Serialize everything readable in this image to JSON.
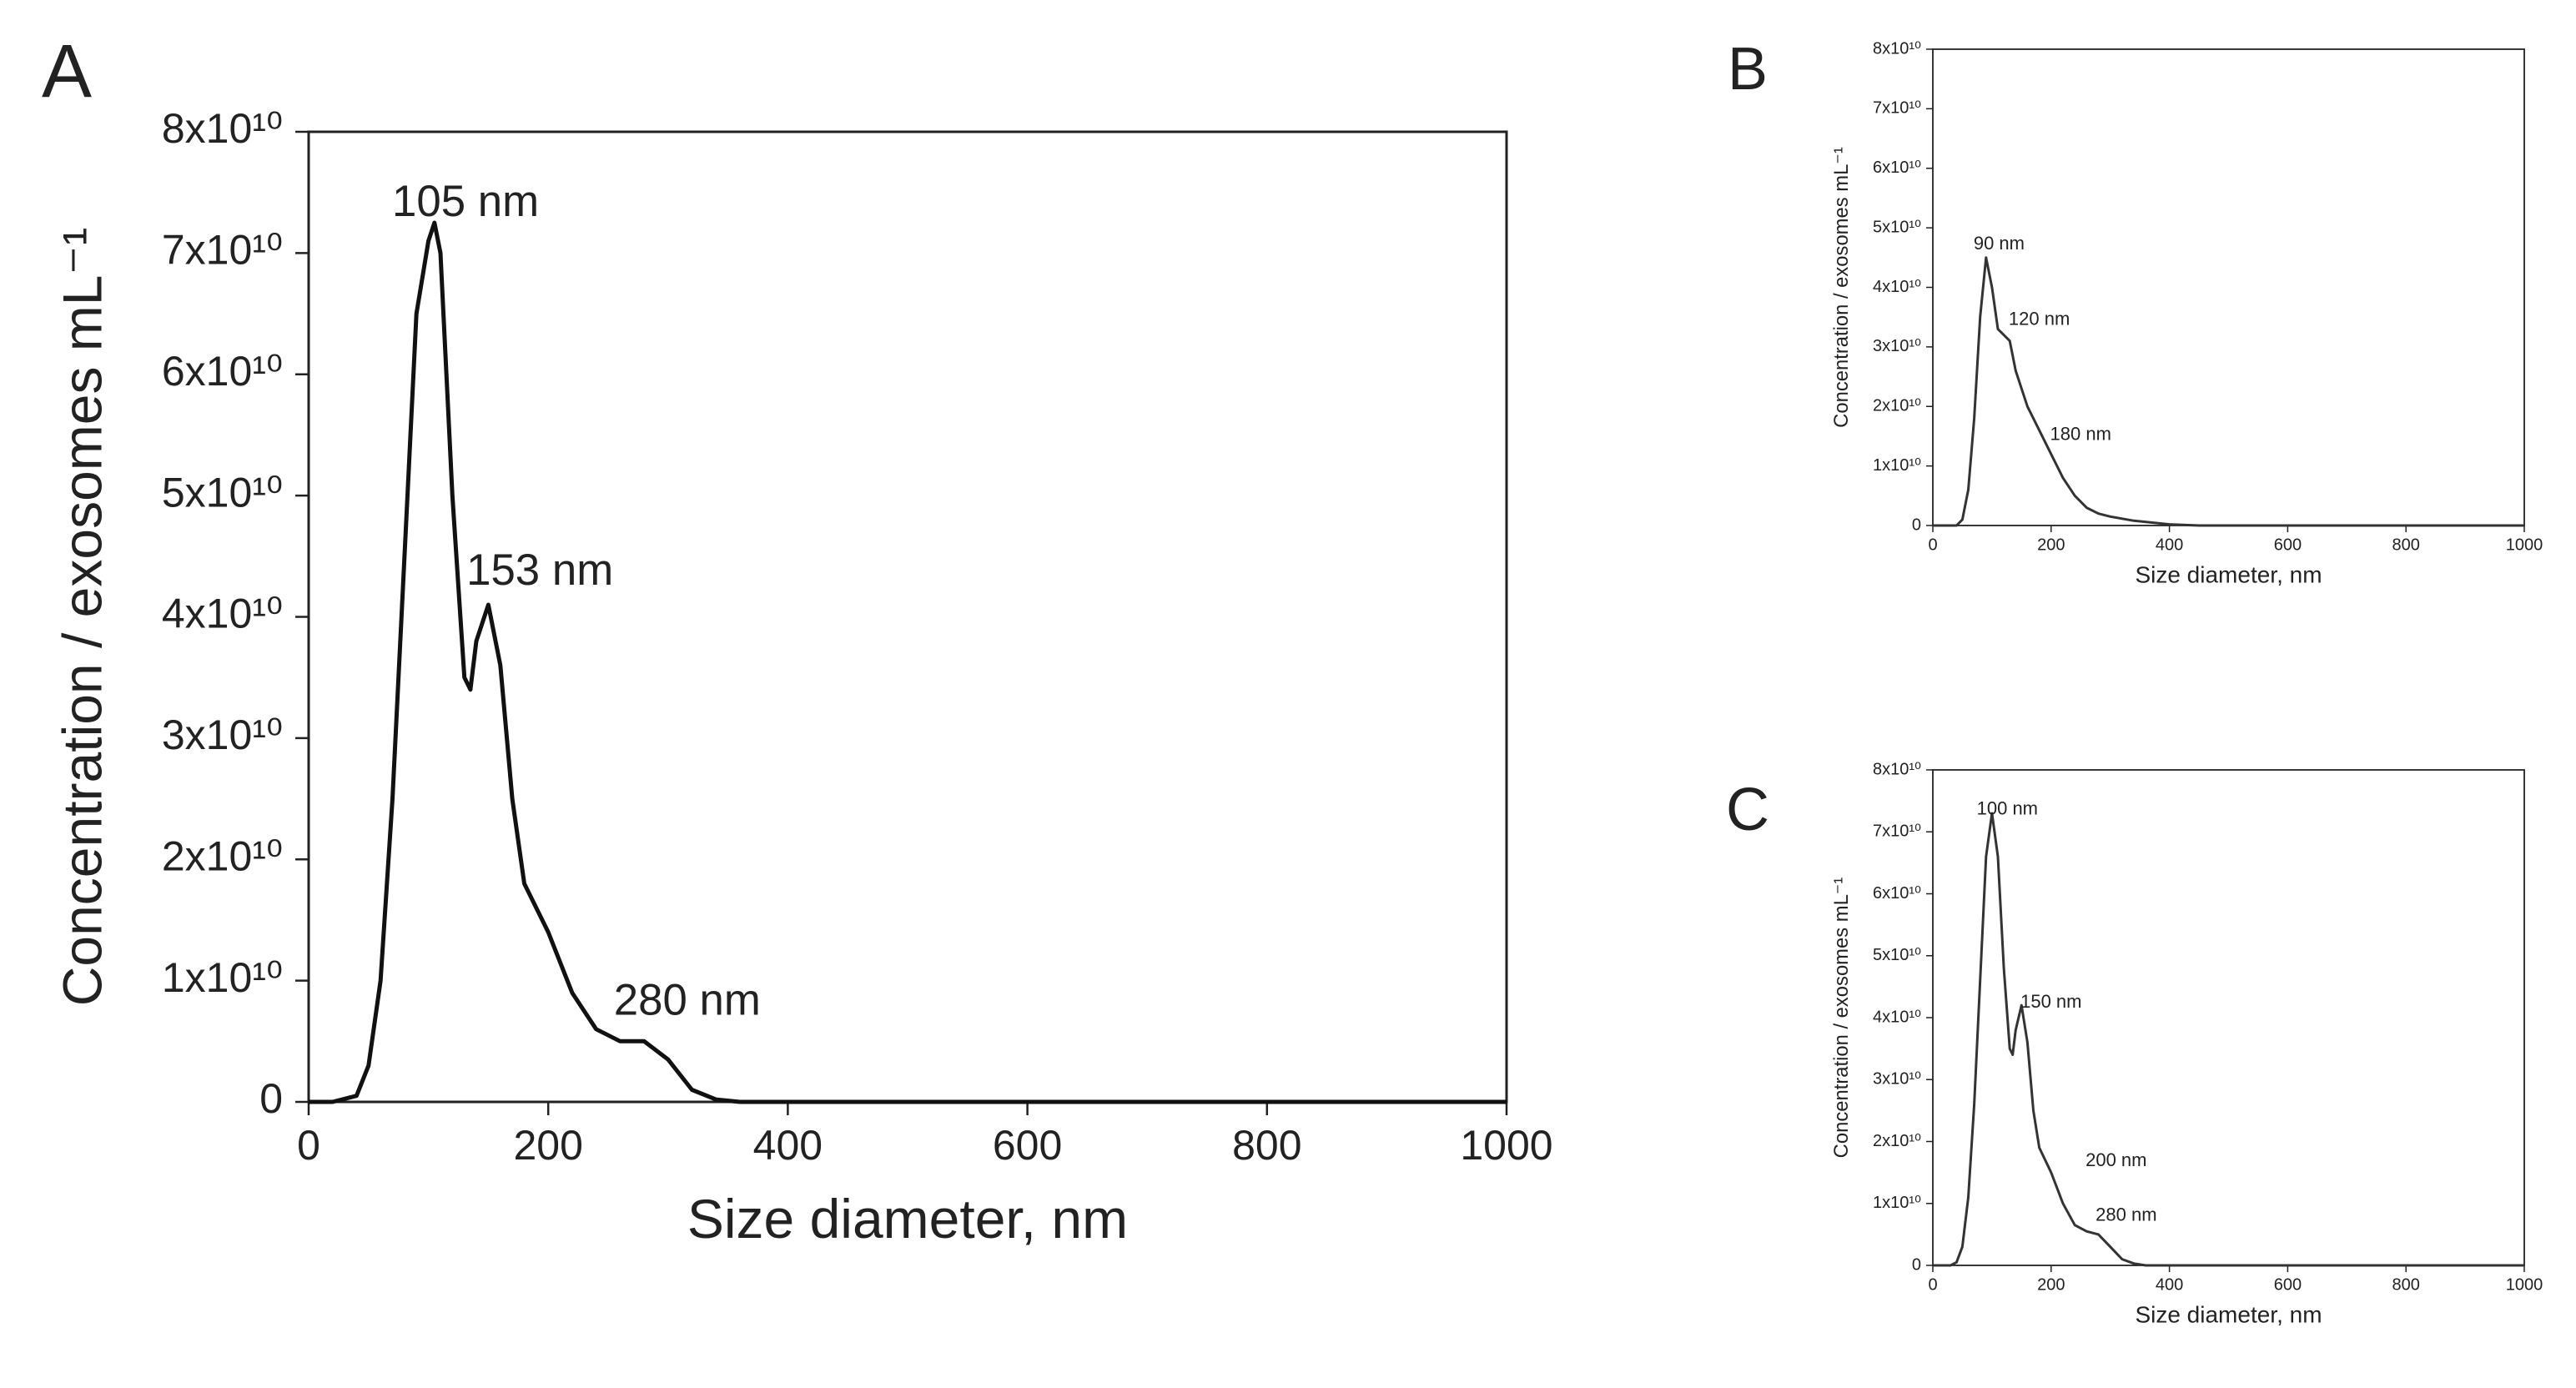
{
  "chart_data": [
    {
      "type": "line",
      "panel_label": "A",
      "xlabel": "Size diameter, nm",
      "ylabel": "Concentration / exosomes mL⁻¹",
      "x": [
        0,
        20,
        40,
        50,
        60,
        70,
        80,
        90,
        100,
        105,
        110,
        120,
        130,
        135,
        140,
        150,
        160,
        170,
        180,
        200,
        220,
        240,
        260,
        280,
        300,
        320,
        340,
        360,
        380,
        400,
        1000
      ],
      "series": [
        {
          "color": "#111111",
          "values": [
            0,
            0,
            500000000.0,
            3000000000.0,
            10000000000.0,
            25000000000.0,
            45000000000.0,
            65000000000.0,
            71000000000.0,
            72500000000.0,
            70000000000.0,
            50000000000.0,
            35000000000.0,
            34000000000.0,
            38000000000.0,
            41000000000.0,
            36000000000.0,
            25000000000.0,
            18000000000.0,
            14000000000.0,
            9000000000.0,
            6000000000.0,
            5000000000.0,
            5000000000.0,
            3500000000.0,
            1000000000.0,
            200000000.0,
            0,
            0,
            0,
            0
          ]
        }
      ],
      "annotations": [
        "105 nm",
        "153 nm",
        "280 nm"
      ],
      "xlim": [
        0,
        1000
      ],
      "xticks": [
        0,
        200,
        400,
        600,
        800,
        1000
      ],
      "ylim": [
        0,
        80000000000.0
      ],
      "yticks": [
        0,
        {
          "value": 10000000000.0,
          "label": "1x10¹⁰"
        },
        {
          "value": 20000000000.0,
          "label": "2x10¹⁰"
        },
        {
          "value": 30000000000.0,
          "label": "3x10¹⁰"
        },
        {
          "value": 40000000000.0,
          "label": "4x10¹⁰"
        },
        {
          "value": 50000000000.0,
          "label": "5x10¹⁰"
        },
        {
          "value": 60000000000.0,
          "label": "6x10¹⁰"
        },
        {
          "value": 70000000000.0,
          "label": "7x10¹⁰"
        },
        {
          "value": 80000000000.0,
          "label": "8x10¹⁰"
        }
      ]
    },
    {
      "type": "line",
      "panel_label": "B",
      "xlabel": "Size diameter, nm",
      "ylabel": "Concentration / exosomes mL⁻¹",
      "x": [
        0,
        40,
        50,
        60,
        70,
        80,
        90,
        100,
        110,
        120,
        130,
        140,
        160,
        180,
        200,
        220,
        240,
        260,
        280,
        300,
        340,
        400,
        450,
        1000
      ],
      "series": [
        {
          "color": "#333333",
          "values": [
            0,
            0,
            1000000000.0,
            6000000000.0,
            18000000000.0,
            35000000000.0,
            45000000000.0,
            40000000000.0,
            33000000000.0,
            32000000000.0,
            31000000000.0,
            26000000000.0,
            20000000000.0,
            16000000000.0,
            12000000000.0,
            8000000000.0,
            5000000000.0,
            3000000000.0,
            2000000000.0,
            1500000000.0,
            800000000.0,
            200000000.0,
            0,
            0
          ]
        }
      ],
      "annotations": [
        "90 nm",
        "120 nm",
        "180 nm"
      ],
      "xlim": [
        0,
        1000
      ],
      "xticks": [
        0,
        200,
        400,
        600,
        800,
        1000
      ],
      "ylim": [
        0,
        80000000000.0
      ],
      "yticks": [
        0,
        {
          "value": 10000000000.0,
          "label": "1x10¹⁰"
        },
        {
          "value": 20000000000.0,
          "label": "2x10¹⁰"
        },
        {
          "value": 30000000000.0,
          "label": "3x10¹⁰"
        },
        {
          "value": 40000000000.0,
          "label": "4x10¹⁰"
        },
        {
          "value": 50000000000.0,
          "label": "5x10¹⁰"
        },
        {
          "value": 60000000000.0,
          "label": "6x10¹⁰"
        },
        {
          "value": 70000000000.0,
          "label": "7x10¹⁰"
        },
        {
          "value": 80000000000.0,
          "label": "8x10¹⁰"
        }
      ]
    },
    {
      "type": "line",
      "panel_label": "C",
      "xlabel": "Size diameter, nm",
      "ylabel": "Concentration / exosomes mL⁻¹",
      "x": [
        0,
        30,
        40,
        50,
        60,
        70,
        80,
        90,
        100,
        110,
        120,
        130,
        135,
        140,
        150,
        160,
        170,
        180,
        200,
        220,
        240,
        260,
        280,
        300,
        320,
        340,
        360,
        400,
        1000
      ],
      "series": [
        {
          "color": "#333333",
          "values": [
            0,
            0,
            500000000.0,
            3000000000.0,
            11000000000.0,
            26000000000.0,
            46000000000.0,
            66000000000.0,
            73000000000.0,
            66000000000.0,
            48000000000.0,
            35000000000.0,
            34000000000.0,
            38000000000.0,
            42000000000.0,
            36000000000.0,
            25000000000.0,
            19000000000.0,
            15000000000.0,
            10000000000.0,
            6500000000.0,
            5500000000.0,
            5000000000.0,
            3000000000.0,
            1000000000.0,
            300000000.0,
            0,
            0,
            0
          ]
        }
      ],
      "annotations": [
        "100 nm",
        "150 nm",
        "200 nm",
        "280 nm"
      ],
      "xlim": [
        0,
        1000
      ],
      "xticks": [
        0,
        200,
        400,
        600,
        800,
        1000
      ],
      "ylim": [
        0,
        80000000000.0
      ],
      "yticks": [
        0,
        {
          "value": 10000000000.0,
          "label": "1x10¹⁰"
        },
        {
          "value": 20000000000.0,
          "label": "2x10¹⁰"
        },
        {
          "value": 30000000000.0,
          "label": "3x10¹⁰"
        },
        {
          "value": 40000000000.0,
          "label": "4x10¹⁰"
        },
        {
          "value": 50000000000.0,
          "label": "5x10¹⁰"
        },
        {
          "value": 60000000000.0,
          "label": "6x10¹⁰"
        },
        {
          "value": 70000000000.0,
          "label": "7x10¹⁰"
        },
        {
          "value": 80000000000.0,
          "label": "8x10¹⁰"
        }
      ]
    }
  ]
}
